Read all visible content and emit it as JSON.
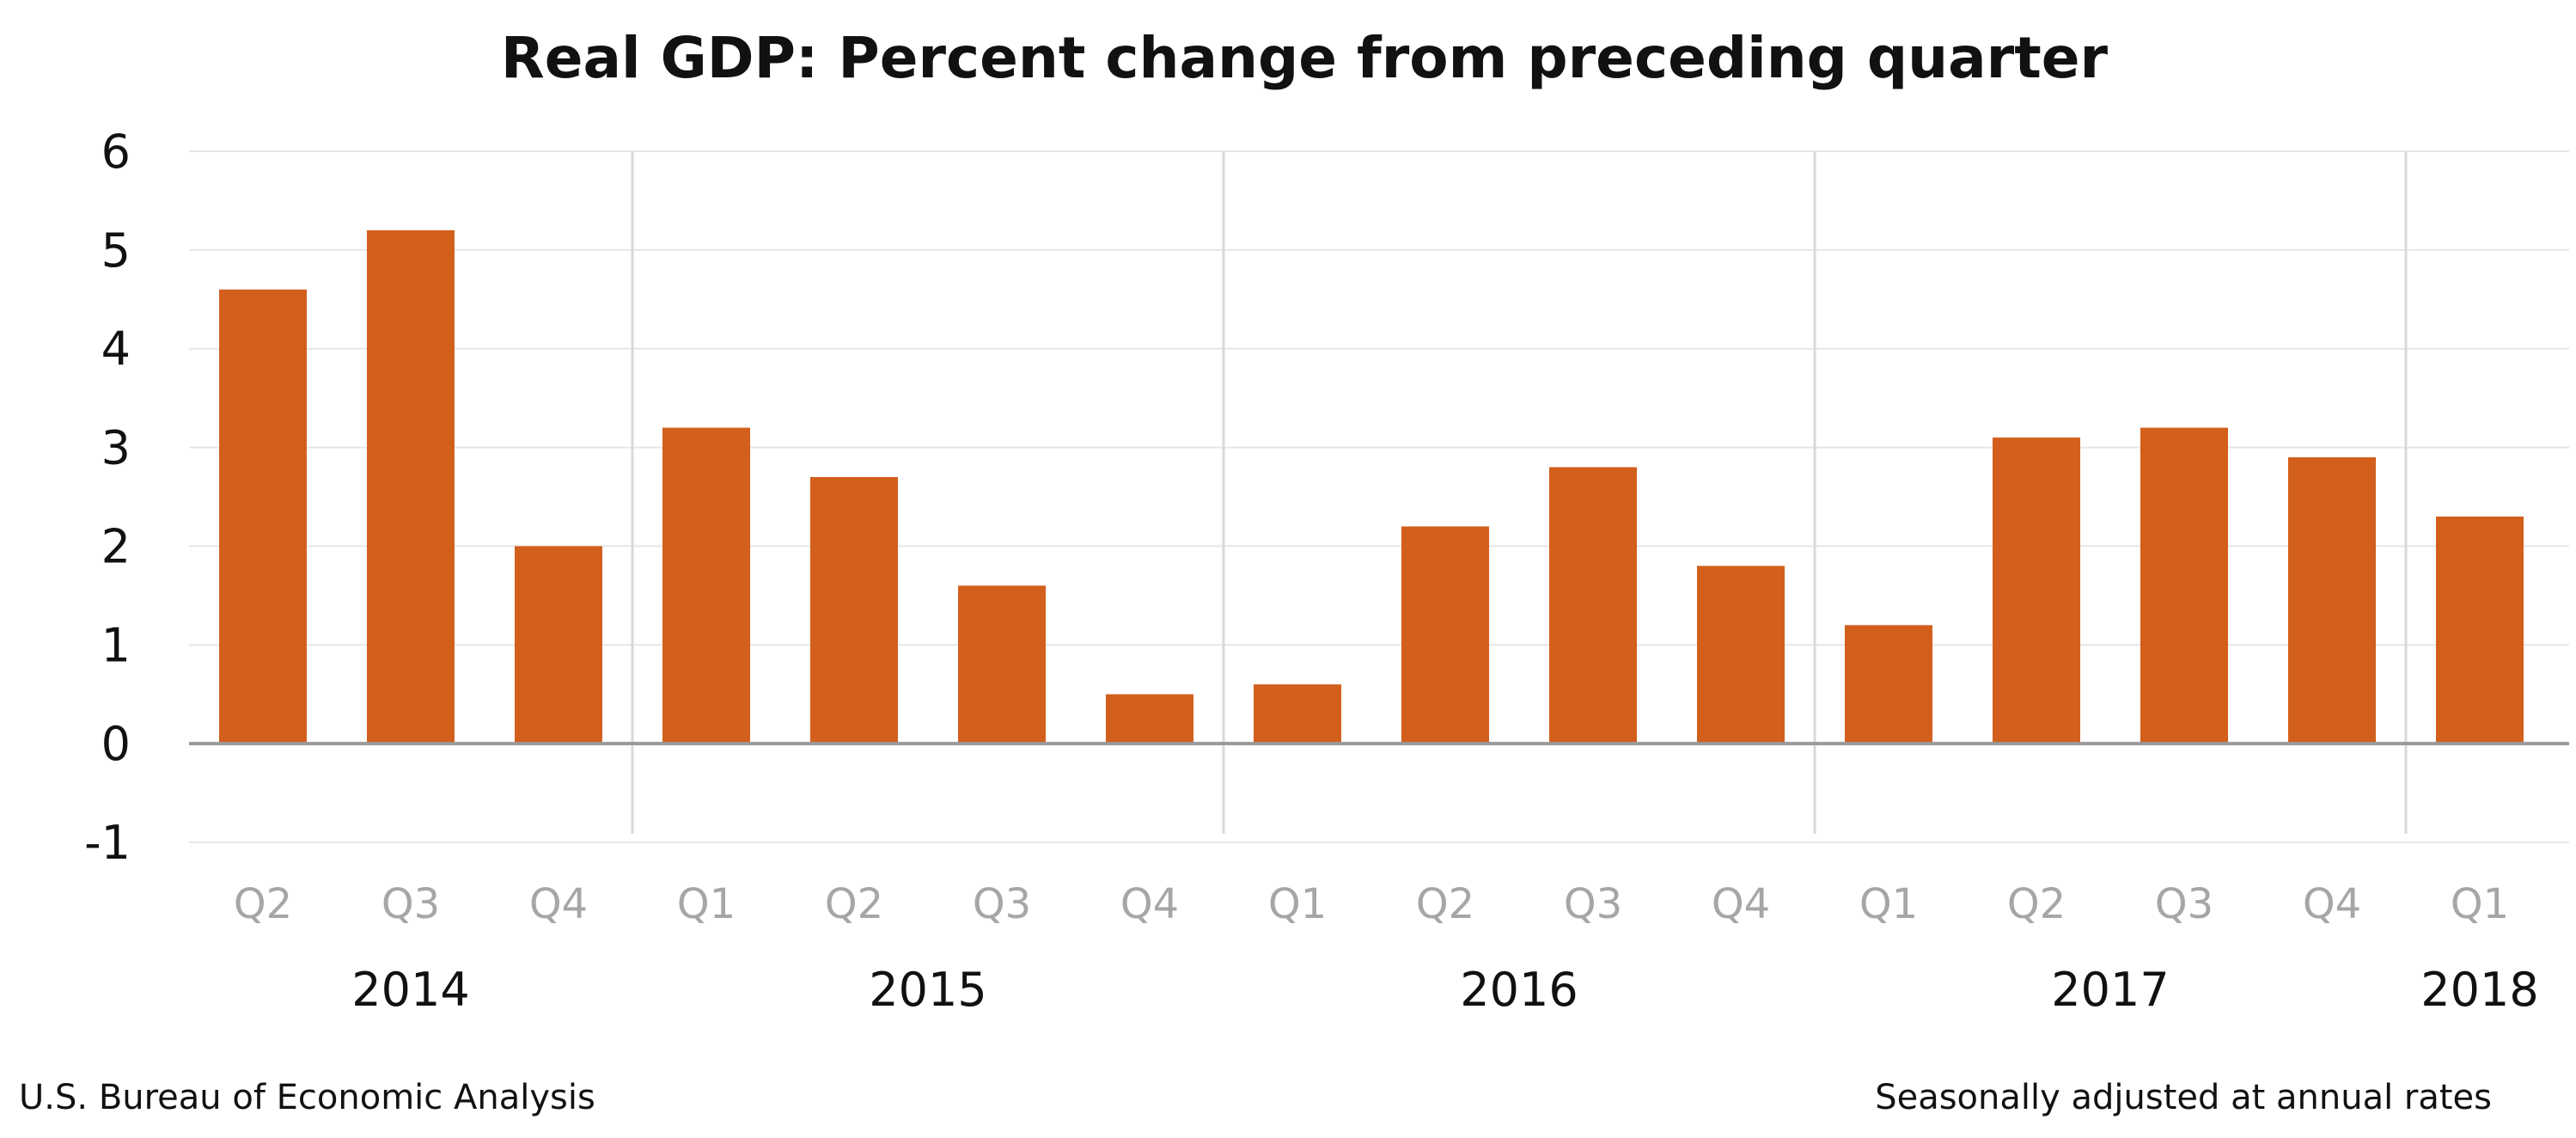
{
  "chart_data": {
    "type": "bar",
    "title": "Real GDP:  Percent change from preceding quarter",
    "xlabel": "",
    "ylabel": "",
    "ylim": [
      -1,
      6
    ],
    "yticks": [
      "6",
      "5",
      "4",
      "3",
      "2",
      "1",
      "0",
      "-1"
    ],
    "grid": true,
    "legend": "none",
    "categories": [
      "Q2",
      "Q3",
      "Q4",
      "Q1",
      "Q2",
      "Q3",
      "Q4",
      "Q1",
      "Q2",
      "Q3",
      "Q4",
      "Q1",
      "Q2",
      "Q3",
      "Q4",
      "Q1"
    ],
    "years": [
      {
        "label": "2014",
        "start": 0,
        "end": 2
      },
      {
        "label": "2015",
        "start": 3,
        "end": 6
      },
      {
        "label": "2016",
        "start": 7,
        "end": 10
      },
      {
        "label": "2017",
        "start": 11,
        "end": 14
      },
      {
        "label": "2018",
        "start": 15,
        "end": 15
      }
    ],
    "values": [
      4.6,
      5.2,
      2.0,
      3.2,
      2.7,
      1.6,
      0.5,
      0.6,
      2.2,
      2.8,
      1.8,
      1.2,
      3.1,
      3.2,
      2.9,
      2.3
    ],
    "bar_color": "#d35f1c",
    "footer_left": "U.S. Bureau of Economic Analysis",
    "footer_right": "Seasonally adjusted at annual rates"
  }
}
